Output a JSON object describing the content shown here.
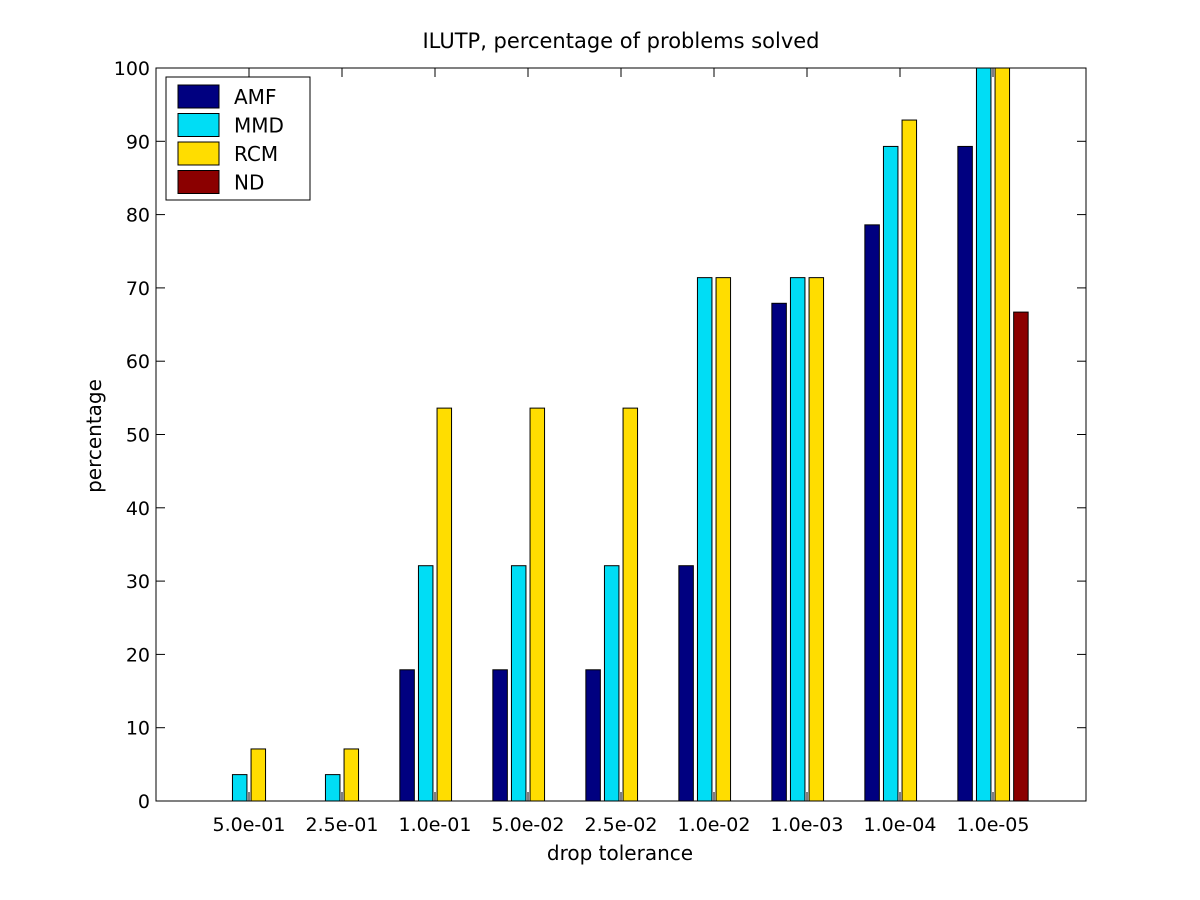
{
  "chart_data": {
    "type": "bar",
    "title": "ILUTP, percentage of problems solved",
    "xlabel": "drop tolerance",
    "ylabel": "percentage",
    "categories": [
      "5.0e-01",
      "2.5e-01",
      "1.0e-01",
      "5.0e-02",
      "2.5e-02",
      "1.0e-02",
      "1.0e-03",
      "1.0e-04",
      "1.0e-05"
    ],
    "ylim": [
      0,
      100
    ],
    "yticks": [
      0,
      10,
      20,
      30,
      40,
      50,
      60,
      70,
      80,
      90,
      100
    ],
    "grid": false,
    "legend_position": "top-left",
    "series": [
      {
        "name": "AMF",
        "color": "#000080",
        "values": [
          0,
          0,
          17.9,
          17.9,
          17.9,
          32.1,
          67.9,
          78.6,
          89.3
        ]
      },
      {
        "name": "MMD",
        "color": "#00DDF5",
        "values": [
          3.6,
          3.6,
          32.1,
          32.1,
          32.1,
          71.4,
          71.4,
          89.3,
          100
        ]
      },
      {
        "name": "RCM",
        "color": "#FFDD00",
        "values": [
          7.1,
          7.1,
          53.6,
          53.6,
          53.6,
          71.4,
          71.4,
          92.9,
          100
        ]
      },
      {
        "name": " ND",
        "color": "#8B0000",
        "values": [
          0,
          0,
          0,
          0,
          0,
          0,
          0,
          0,
          66.7
        ]
      }
    ]
  }
}
